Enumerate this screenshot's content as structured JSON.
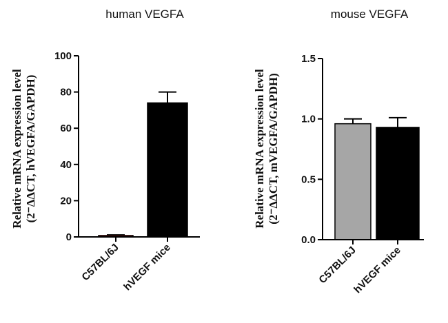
{
  "chart_data": [
    {
      "type": "bar",
      "title": "human VEGFA",
      "ylabel_line1": "Relative mRNA expression level",
      "ylabel_line2": "(2⁻ΔΔCT, hVEGFA/GAPDH)",
      "categories": [
        "C57BL/6J",
        "hVEGF mice"
      ],
      "values": [
        0.8,
        74
      ],
      "errors": [
        0.3,
        6
      ],
      "bar_colors": [
        "#d62b1f",
        "#000000"
      ],
      "ylim": [
        0,
        100
      ],
      "yticks": [
        0,
        20,
        40,
        60,
        80,
        100
      ],
      "ytick_labels": [
        "0",
        "20",
        "40",
        "60",
        "80",
        "100"
      ]
    },
    {
      "type": "bar",
      "title": "mouse VEGFA",
      "ylabel_line1": "Relative mRNA expression level",
      "ylabel_line2": "(2⁻ΔΔCT, mVEGFA/GAPDH)",
      "categories": [
        "C57BL/6J",
        "hVEGF mice"
      ],
      "values": [
        0.96,
        0.93
      ],
      "errors": [
        0.04,
        0.08
      ],
      "bar_colors": [
        "#a6a6a6",
        "#000000"
      ],
      "ylim": [
        0,
        1.5
      ],
      "yticks": [
        0,
        0.5,
        1.0,
        1.5
      ],
      "ytick_labels": [
        "0.0",
        "0.5",
        "1.0",
        "1.5"
      ]
    }
  ]
}
